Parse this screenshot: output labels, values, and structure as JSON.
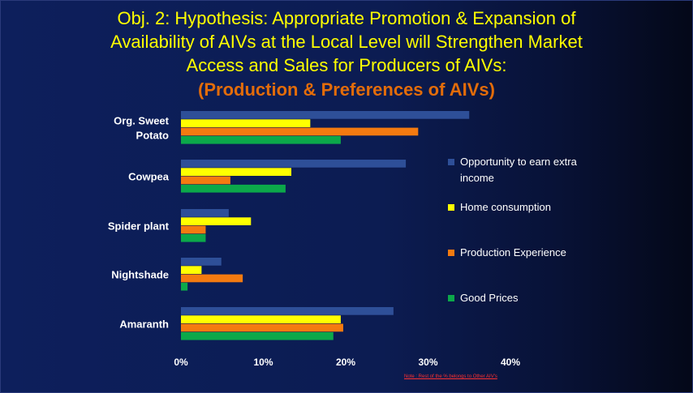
{
  "title_lines": [
    "Obj. 2: Hypothesis: Appropriate Promotion & Expansion of",
    "Availability of AIVs at the Local Level will Strengthen Market",
    "Access and Sales for Producers of AIVs:"
  ],
  "subtitle": "(Production & Preferences of AIVs)",
  "note": "Note : Rest of the % belongs to Other AIV's",
  "chart_data": {
    "type": "bar",
    "orientation": "horizontal",
    "categories": [
      "Org. Sweet Potato",
      "Cowpea",
      "Spider plant",
      "Nightshade",
      "Amaranth"
    ],
    "category_label_lines": [
      [
        "Org. Sweet",
        "Potato"
      ],
      [
        "Cowpea"
      ],
      [
        "Spider plant"
      ],
      [
        "Nightshade"
      ],
      [
        "Amaranth"
      ]
    ],
    "series": [
      {
        "name": "Opportunity to earn extra income",
        "legend_lines": [
          "Opportunity to earn extra",
          "income"
        ],
        "color": "#2e4f98",
        "values": [
          35.0,
          27.3,
          5.8,
          4.9,
          25.8
        ]
      },
      {
        "name": "Home consumption",
        "legend_lines": [
          "Home consumption"
        ],
        "color": "#ffff00",
        "values": [
          15.7,
          13.4,
          8.5,
          2.5,
          19.4
        ]
      },
      {
        "name": "Production Experience",
        "legend_lines": [
          "Production Experience"
        ],
        "color": "#f47a10",
        "values": [
          28.8,
          6.0,
          3.0,
          7.5,
          19.7
        ]
      },
      {
        "name": "Good Prices",
        "legend_lines": [
          "Good Prices"
        ],
        "color": "#0ca84a",
        "values": [
          19.4,
          12.7,
          3.0,
          0.8,
          18.5
        ]
      }
    ],
    "xlim": [
      0,
      40
    ],
    "x_ticks": [
      0,
      10,
      20,
      30,
      40
    ],
    "x_tick_labels": [
      "0%",
      "10%",
      "20%",
      "30%",
      "40%"
    ],
    "legend_position": "right",
    "grid": false
  }
}
